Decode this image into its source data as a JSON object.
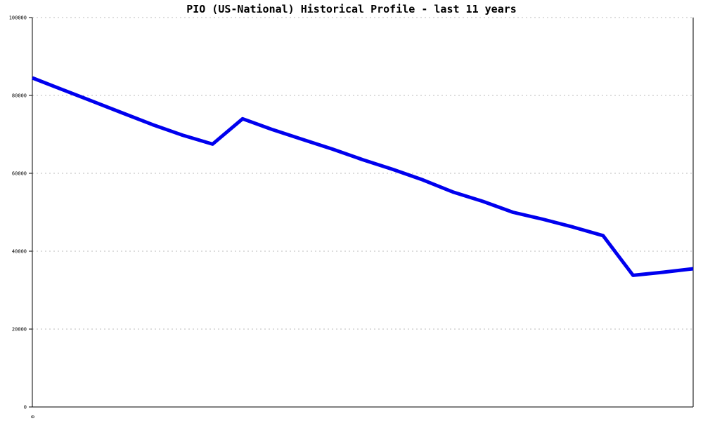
{
  "chart_data": {
    "type": "line",
    "title": "PIO (US-National) Historical Profile - last 11 years",
    "xlabel": "",
    "ylabel": "",
    "xlim": [
      0,
      22
    ],
    "ylim": [
      0,
      100000
    ],
    "yticks": [
      0,
      20000,
      40000,
      60000,
      80000,
      100000
    ],
    "ytick_labels": [
      "0",
      "20000",
      "40000",
      "60000",
      "80000",
      "100000"
    ],
    "xtick_labels": [
      "0"
    ],
    "grid": true,
    "legend": "none",
    "colors": {
      "line": "#0000ee",
      "grid": "#bbbbbb",
      "axis": "#000000"
    },
    "series": [
      {
        "x": [
          0,
          1,
          2,
          3,
          4,
          5,
          6,
          7,
          8,
          9,
          10,
          11,
          12,
          13,
          14,
          15,
          16,
          17,
          18,
          19,
          20,
          21,
          22
        ],
        "values": [
          84500,
          81500,
          78500,
          75500,
          72500,
          69800,
          67500,
          74000,
          71200,
          68700,
          66200,
          63500,
          61000,
          58300,
          55200,
          52800,
          50000,
          48200,
          46200,
          44000,
          33800,
          34600,
          35500
        ]
      }
    ]
  }
}
